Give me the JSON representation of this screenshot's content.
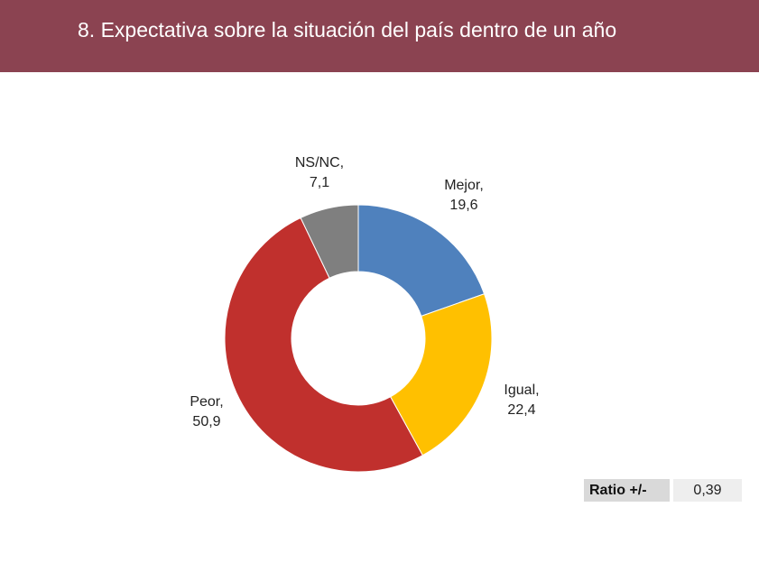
{
  "header": {
    "title": "8. Expectativa sobre la situación del país dentro de un año"
  },
  "chart_data": {
    "type": "pie",
    "donut": true,
    "start_angle_deg": 0,
    "direction": "clockwise",
    "slices": [
      {
        "name": "Mejor",
        "value": 19.6,
        "name_label": "Mejor,",
        "value_label": "19,6",
        "color": "#4f81bd"
      },
      {
        "name": "Igual",
        "value": 22.4,
        "name_label": "Igual,",
        "value_label": "22,4",
        "color": "#ffc000"
      },
      {
        "name": "Peor",
        "value": 50.9,
        "name_label": "Peor,",
        "value_label": "50,9",
        "color": "#c0302d"
      },
      {
        "name": "NS/NC",
        "value": 7.1,
        "name_label": "NS/NC,",
        "value_label": "7,1",
        "color": "#7f7f7f"
      }
    ],
    "title": "",
    "legend": "none"
  },
  "ratio": {
    "label": "Ratio +/-",
    "value": "0,39"
  }
}
